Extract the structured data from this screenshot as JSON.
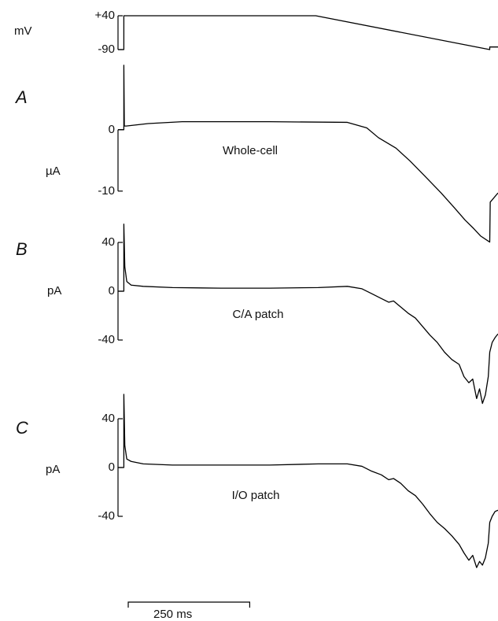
{
  "chart_data": [
    {
      "type": "line",
      "ylabel": "mV",
      "xlim": [
        -12,
        770
      ],
      "ylim": [
        -90,
        40
      ],
      "yticks": [
        {
          "value": 40,
          "label": "+40"
        },
        -90
      ],
      "x": [
        -12,
        0,
        0,
        395,
        753,
        753,
        770
      ],
      "series": [
        {
          "color": "#000000",
          "values": [
            -90,
            -90,
            40,
            40,
            -90,
            -80,
            -80
          ]
        }
      ]
    },
    {
      "type": "line",
      "panel": "A",
      "ylabel": "µA",
      "annotation": "Whole-cell",
      "xlim": [
        -12,
        770
      ],
      "ylim": [
        -19,
        11
      ],
      "yticks": [
        0,
        -10
      ],
      "x": [
        -12,
        0,
        0,
        1,
        5,
        50,
        120,
        300,
        460,
        500,
        524,
        560,
        589,
        620,
        653,
        680,
        702,
        720,
        734,
        753,
        754,
        770
      ],
      "series": [
        {
          "color": "#000000",
          "values": [
            0,
            0,
            10.5,
            0.6,
            0.6,
            1.0,
            1.3,
            1.3,
            1.2,
            0.3,
            -1.3,
            -3.0,
            -5.1,
            -7.6,
            -10.3,
            -12.7,
            -14.7,
            -16.1,
            -17.3,
            -18.3,
            -11.8,
            -10.3
          ]
        }
      ]
    },
    {
      "type": "line",
      "panel": "B",
      "ylabel": "pA",
      "annotation": "C/A patch",
      "xlim": [
        -12,
        770
      ],
      "ylim": [
        -100,
        60
      ],
      "yticks": [
        40,
        0,
        -40
      ],
      "x": [
        -12,
        0,
        0,
        2,
        6,
        15,
        40,
        100,
        200,
        300,
        400,
        460,
        490,
        510,
        530,
        545,
        555,
        570,
        585,
        600,
        615,
        630,
        645,
        660,
        675,
        690,
        700,
        710,
        718,
        726,
        732,
        738,
        744,
        750,
        753,
        758,
        764,
        770
      ],
      "series": [
        {
          "color": "#000000",
          "values": [
            0,
            0,
            55,
            20,
            8,
            5,
            4,
            3,
            2.5,
            2.5,
            3,
            4,
            2,
            -2,
            -6,
            -9,
            -8,
            -13,
            -18,
            -22,
            -29,
            -36,
            -42,
            -50,
            -56,
            -60,
            -70,
            -75,
            -72,
            -88,
            -80,
            -92,
            -85,
            -70,
            -50,
            -42,
            -38,
            -35
          ]
        }
      ]
    },
    {
      "type": "line",
      "panel": "C",
      "ylabel": "pA",
      "annotation": "I/O patch",
      "xlim": [
        -12,
        770
      ],
      "ylim": [
        -100,
        60
      ],
      "yticks": [
        40,
        0,
        -40
      ],
      "x": [
        -12,
        0,
        0,
        2,
        6,
        15,
        40,
        100,
        200,
        300,
        400,
        460,
        490,
        510,
        530,
        545,
        555,
        570,
        585,
        600,
        615,
        630,
        645,
        660,
        675,
        690,
        700,
        710,
        718,
        726,
        732,
        738,
        744,
        750,
        753,
        758,
        764,
        770
      ],
      "series": [
        {
          "color": "#000000",
          "values": [
            0,
            0,
            60,
            18,
            7,
            5,
            3,
            2,
            2,
            2,
            3,
            3,
            1,
            -3,
            -6,
            -10,
            -9,
            -13,
            -19,
            -23,
            -30,
            -38,
            -45,
            -50,
            -56,
            -63,
            -70,
            -76,
            -72,
            -82,
            -77,
            -80,
            -74,
            -62,
            -45,
            -40,
            -36,
            -35
          ]
        }
      ]
    }
  ],
  "scale_bar": {
    "value": 250,
    "label": "250 ms"
  }
}
